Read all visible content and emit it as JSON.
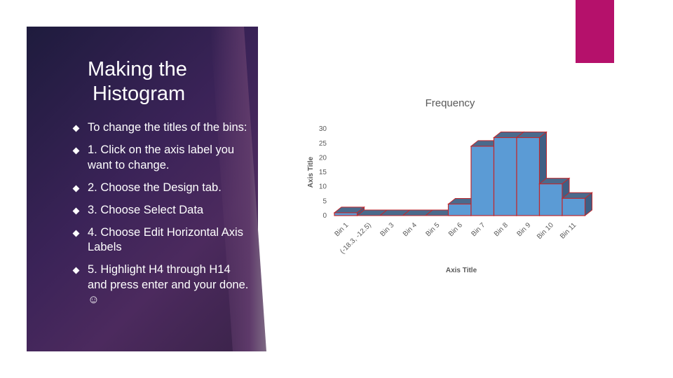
{
  "slide": {
    "title_lines": [
      "Making the",
      "Histogram"
    ],
    "bullets": [
      "To change the titles of the bins:",
      "1. Click on the axis label  you want to change.",
      "2. Choose the Design tab.",
      "3.  Choose Select Data",
      "4.  Choose Edit Horizontal Axis Labels",
      "5.  Highlight H4 through H14 and press enter and your done. ☺"
    ],
    "colors": {
      "panel": "#3b2358",
      "accent": "#b5116b",
      "bar_fill": "#5b9bd5",
      "bar_top": "#4a6a8c",
      "bar_outline": "#c0282d"
    }
  },
  "chart_data": {
    "type": "bar",
    "title": "Frequency",
    "xlabel": "Axis Title",
    "ylabel": "Axis Title",
    "categories": [
      "Bin 1",
      "(-18.3, -12.5)",
      "Bin 3",
      "Bin 4",
      "Bin 5",
      "Bin 6",
      "Bin 7",
      "Bin 8",
      "Bin 9",
      "Bin 10",
      "Bin 11"
    ],
    "values": [
      1,
      0,
      0,
      0,
      0,
      4,
      24,
      27,
      27,
      11,
      6
    ],
    "yticks": [
      0,
      5,
      10,
      15,
      20,
      25,
      30
    ],
    "ylim": [
      0,
      30
    ]
  }
}
